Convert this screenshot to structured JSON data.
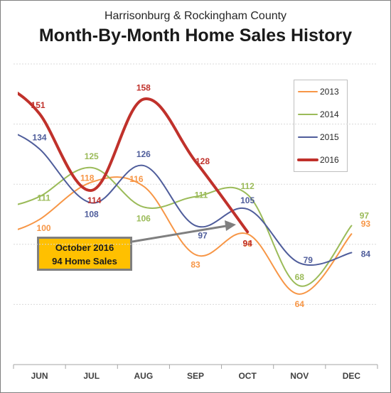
{
  "chart_data": {
    "type": "line",
    "subtitle": "Harrisonburg & Rockingham County",
    "title": "Month-By-Month Home Sales History",
    "categories": [
      "JUN",
      "JUL",
      "AUG",
      "SEP",
      "OCT",
      "NOV",
      "DEC"
    ],
    "ylim": [
      30,
      175
    ],
    "grid": true,
    "legend_position": "top-right",
    "series": [
      {
        "name": "2013",
        "color": "#f79646",
        "values": [
          100,
          118,
          116,
          83,
          93,
          64,
          93
        ]
      },
      {
        "name": "2014",
        "color": "#9bbb59",
        "values": [
          111,
          125,
          106,
          111,
          112,
          68,
          97
        ]
      },
      {
        "name": "2015",
        "color": "#4f5d9b",
        "values": [
          134,
          108,
          126,
          97,
          105,
          79,
          84
        ]
      },
      {
        "name": "2016",
        "color": "#c0312b",
        "values": [
          151,
          114,
          158,
          128,
          94,
          null,
          null
        ]
      }
    ],
    "annotation": {
      "line1": "October 2016",
      "line2": "94 Home Sales"
    }
  }
}
